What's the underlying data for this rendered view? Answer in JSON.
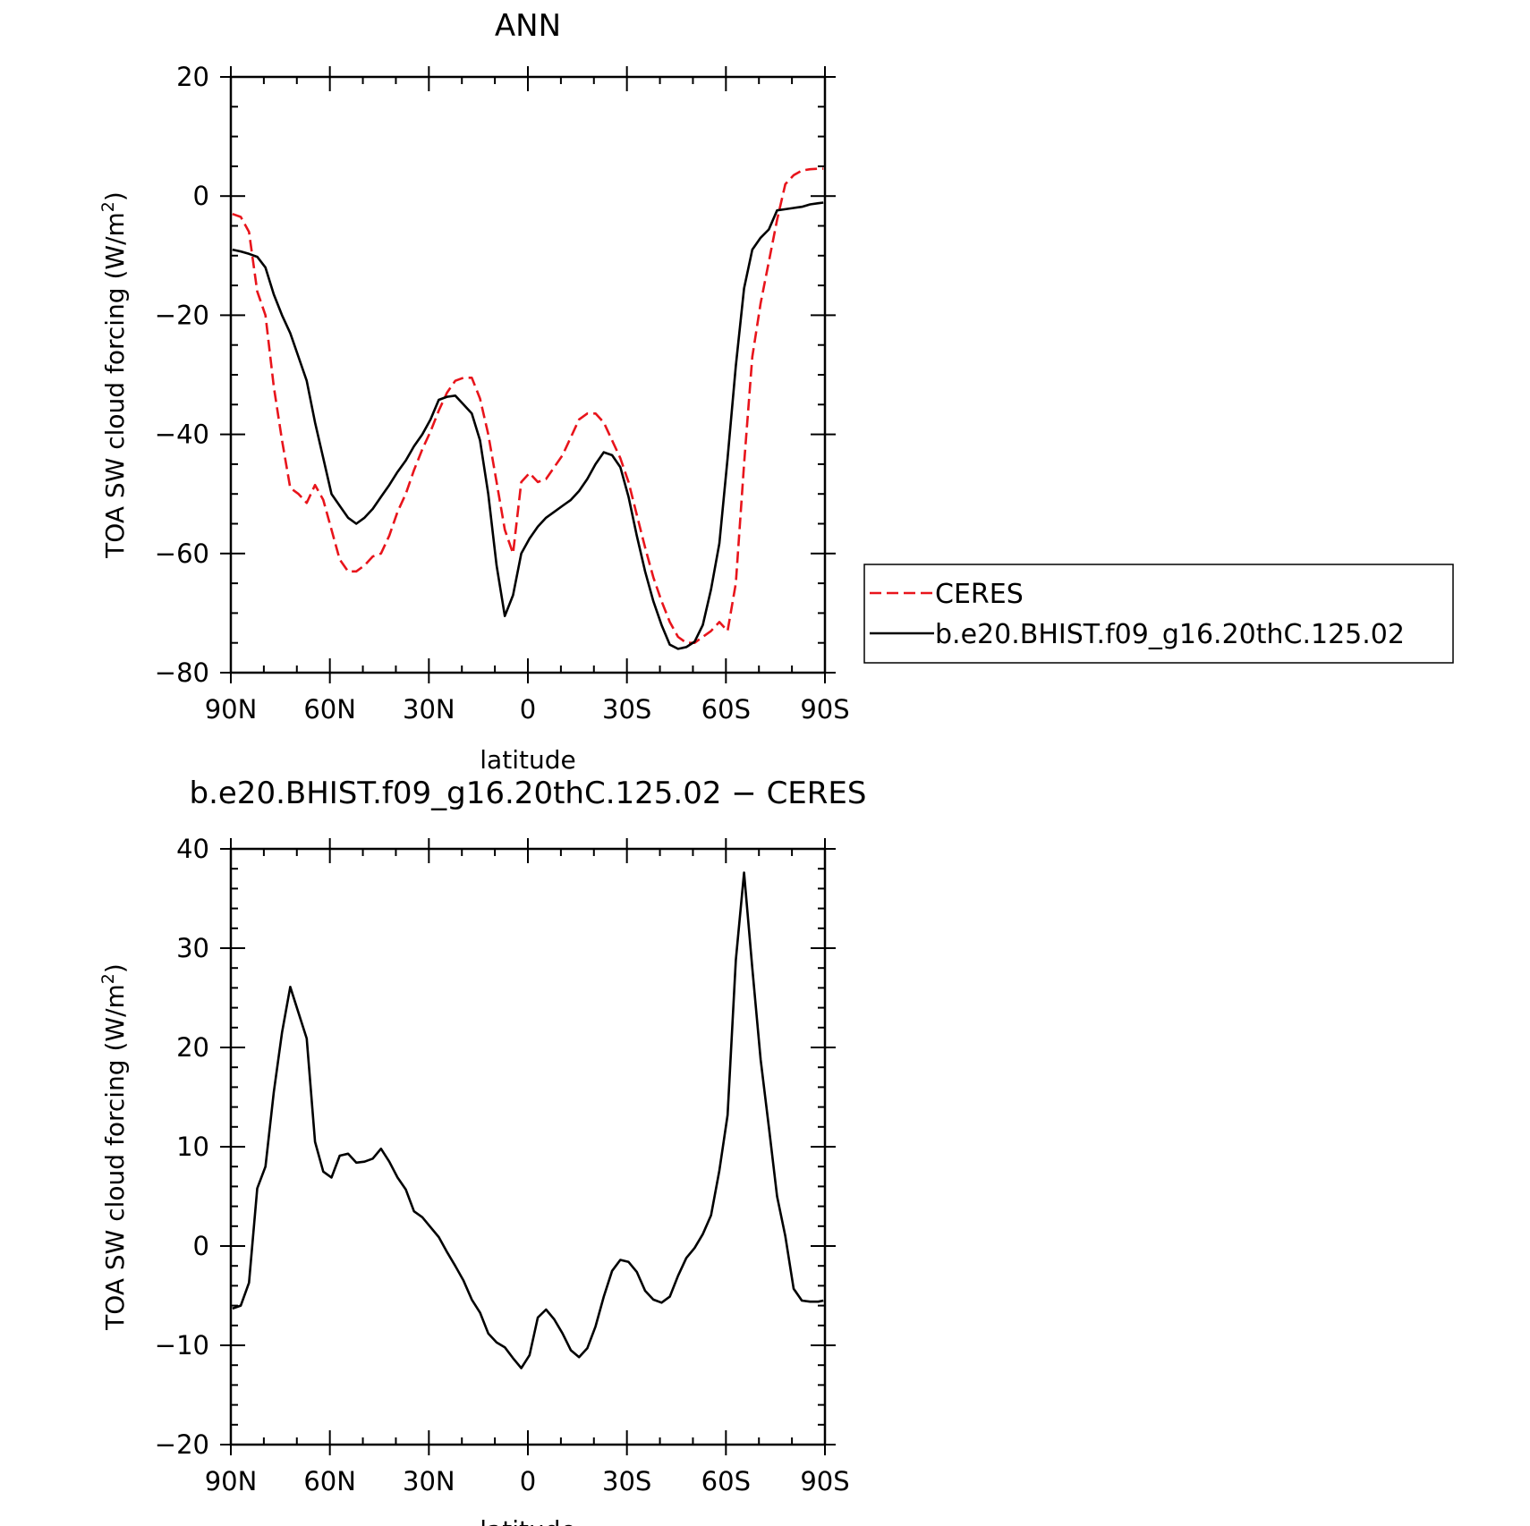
{
  "chart_data": [
    {
      "type": "line",
      "title": "ANN",
      "xlabel": "latitude",
      "ylabel": "TOA SW cloud forcing (W/m",
      "ylabel_sup": "2",
      "ylabel_end": ")",
      "xlim": [
        90,
        -90
      ],
      "ylim": [
        -80,
        20
      ],
      "x_ticks": [
        90,
        60,
        30,
        0,
        -30,
        -60,
        -90
      ],
      "x_tick_labels": [
        "90N",
        "60N",
        "30N",
        "0",
        "30S",
        "60S",
        "90S"
      ],
      "y_ticks": [
        20,
        0,
        -20,
        -40,
        -60,
        -80
      ],
      "y_tick_labels": [
        "20",
        "0",
        "−20",
        "−40",
        "−60",
        "−80"
      ],
      "legend_position": "right",
      "series": [
        {
          "name": "CERES",
          "color": "#e8141b",
          "dash": "dashed",
          "x": [
            89.5,
            87,
            84.5,
            82,
            79.5,
            77,
            74.5,
            72,
            69.5,
            67,
            64.5,
            62,
            59.5,
            57,
            54.5,
            52,
            49.5,
            47,
            44.5,
            42,
            39.5,
            37,
            34.5,
            32,
            29.5,
            27,
            24.5,
            22,
            19.5,
            17,
            14.5,
            12,
            9.5,
            7,
            4.5,
            2,
            -0.5,
            -3,
            -5.5,
            -8,
            -10.5,
            -13,
            -15.5,
            -18,
            -20.5,
            -23,
            -25.5,
            -28,
            -30.5,
            -33,
            -35.5,
            -38,
            -40.5,
            -43,
            -45.5,
            -48,
            -50.5,
            -53,
            -55.5,
            -58,
            -60.5,
            -63,
            -65.5,
            -68,
            -70.5,
            -73,
            -75.5,
            -78,
            -80.5,
            -83,
            -85.5,
            -88,
            -89.5
          ],
          "y": [
            -3,
            -3.5,
            -6,
            -16,
            -20,
            -32,
            -41,
            -49,
            -50,
            -51.5,
            -48.5,
            -51,
            -56,
            -61,
            -63,
            -63,
            -62,
            -60.5,
            -60,
            -57,
            -53,
            -50,
            -46,
            -42.5,
            -39.5,
            -36,
            -33,
            -31,
            -30.5,
            -30.5,
            -34,
            -40,
            -48,
            -56,
            -60,
            -48,
            -46.5,
            -48,
            -47.5,
            -45.5,
            -43.5,
            -40.5,
            -37.5,
            -36.5,
            -36.5,
            -38,
            -41,
            -44,
            -48,
            -53.5,
            -59,
            -64,
            -68,
            -71.5,
            -74,
            -75,
            -75,
            -74,
            -73,
            -71.5,
            -73,
            -65,
            -45,
            -27,
            -18,
            -11,
            -4,
            2,
            3.5,
            4.3,
            4.5,
            4.6,
            4.6
          ]
        },
        {
          "name": "b.e20.BHIST.f09_g16.20thC.125.02",
          "color": "#000000",
          "dash": "solid",
          "x": [
            89.5,
            87,
            84.5,
            82,
            79.5,
            77,
            74.5,
            72,
            69.5,
            67,
            64.5,
            62,
            59.5,
            57,
            54.5,
            52,
            49.5,
            47,
            44.5,
            42,
            39.5,
            37,
            34.5,
            32,
            29.5,
            27,
            24.5,
            22,
            19.5,
            17,
            14.5,
            12,
            9.5,
            7,
            4.5,
            2,
            -0.5,
            -3,
            -5.5,
            -8,
            -10.5,
            -13,
            -15.5,
            -18,
            -20.5,
            -23,
            -25.5,
            -28,
            -30.5,
            -33,
            -35.5,
            -38,
            -40.5,
            -43,
            -45.5,
            -48,
            -50.5,
            -53,
            -55.5,
            -58,
            -60.5,
            -63,
            -65.5,
            -68,
            -70.5,
            -73,
            -75.5,
            -78,
            -80.5,
            -83,
            -85.5,
            -88,
            -89.5
          ],
          "y": [
            -9,
            -9.3,
            -9.7,
            -10.2,
            -12,
            -16.5,
            -20,
            -23,
            -27,
            -31,
            -38,
            -44,
            -50,
            -52,
            -54,
            -55,
            -54,
            -52.5,
            -50.5,
            -48.5,
            -46.3,
            -44.4,
            -42,
            -40,
            -37.5,
            -34.2,
            -33.7,
            -33.5,
            -35,
            -36.5,
            -41,
            -50,
            -62,
            -70.5,
            -67,
            -60,
            -57.5,
            -55.5,
            -54,
            -53,
            -52,
            -51,
            -49.5,
            -47.5,
            -45,
            -43,
            -43.5,
            -45.5,
            -50.5,
            -57,
            -63,
            -68,
            -72,
            -75.3,
            -76,
            -75.7,
            -74.8,
            -72,
            -66,
            -58.3,
            -44,
            -28.5,
            -15.5,
            -9,
            -7,
            -5.6,
            -2.4,
            -2.2,
            -2,
            -1.8,
            -1.4,
            -1.2,
            -1.1
          ]
        }
      ]
    },
    {
      "type": "line",
      "title": "b.e20.BHIST.f09_g16.20thC.125.02 − CERES",
      "xlabel": "latitude",
      "ylabel": "TOA SW cloud forcing (W/m",
      "ylabel_sup": "2",
      "ylabel_end": ")",
      "xlim": [
        90,
        -90
      ],
      "ylim": [
        -20,
        40
      ],
      "x_ticks": [
        90,
        60,
        30,
        0,
        -30,
        -60,
        -90
      ],
      "x_tick_labels": [
        "90N",
        "60N",
        "30N",
        "0",
        "30S",
        "60S",
        "90S"
      ],
      "y_ticks": [
        40,
        30,
        20,
        10,
        0,
        -10,
        -20
      ],
      "y_tick_labels": [
        "40",
        "30",
        "20",
        "10",
        "0",
        "−10",
        "−20"
      ],
      "series": [
        {
          "color": "#000000",
          "dash": "solid",
          "x": [
            89.5,
            87,
            84.5,
            82,
            79.5,
            77,
            74.5,
            72,
            69.5,
            67,
            64.5,
            62,
            59.5,
            57,
            54.5,
            52,
            49.5,
            47,
            44.5,
            42,
            39.5,
            37,
            34.5,
            32,
            29.5,
            27,
            24.5,
            22,
            19.5,
            17,
            14.5,
            12,
            9.5,
            7,
            4.5,
            2,
            -0.5,
            -3,
            -5.5,
            -8,
            -10.5,
            -13,
            -15.5,
            -18,
            -20.5,
            -23,
            -25.5,
            -28,
            -30.5,
            -33,
            -35.5,
            -38,
            -40.5,
            -43,
            -45.5,
            -48,
            -50.5,
            -53,
            -55.5,
            -58,
            -60.5,
            -63,
            -65.5,
            -68,
            -70.5,
            -73,
            -75.5,
            -78,
            -80.5,
            -83,
            -85.5,
            -88,
            -89.5
          ],
          "y": [
            -6.3,
            -6,
            -3.7,
            5.8,
            8,
            15.5,
            21.5,
            26.1,
            23.5,
            20.9,
            10.5,
            7.5,
            6.9,
            9.1,
            9.3,
            8.4,
            8.5,
            8.8,
            9.8,
            8.5,
            6.9,
            5.7,
            3.5,
            2.9,
            1.9,
            0.9,
            -0.6,
            -2,
            -3.5,
            -5.4,
            -6.7,
            -8.8,
            -9.7,
            -10.2,
            -11.3,
            -12.3,
            -11,
            -7.2,
            -6.4,
            -7.4,
            -8.8,
            -10.5,
            -11.2,
            -10.3,
            -8.1,
            -5.1,
            -2.5,
            -1.4,
            -1.6,
            -2.6,
            -4.5,
            -5.4,
            -5.7,
            -5.1,
            -3,
            -1.2,
            -0.2,
            1.2,
            3.1,
            7.6,
            13.2,
            28.8,
            37.6,
            28,
            18.8,
            12,
            5,
            1,
            -4.3,
            -5.5,
            -5.6,
            -5.6,
            -5.5
          ]
        }
      ]
    }
  ]
}
